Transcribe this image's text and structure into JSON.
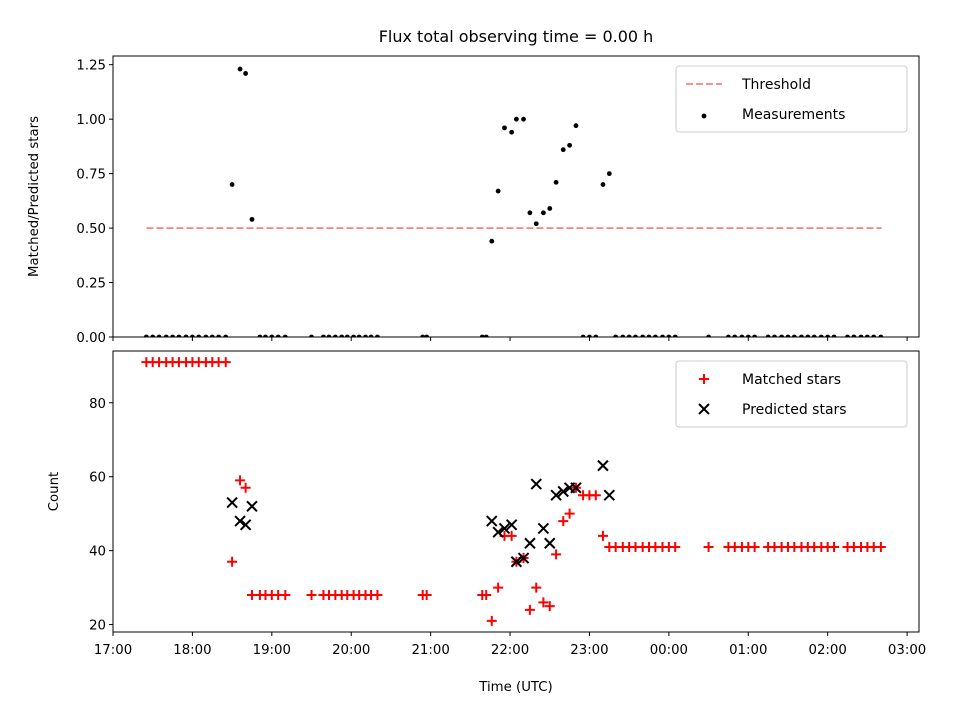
{
  "chart_data": [
    {
      "type": "scatter",
      "title": "Flux total observing time = 0.00 h",
      "xlabel": "",
      "ylabel": "Matched/Predicted stars",
      "xlim": [
        17.0,
        27.15
      ],
      "ylim": [
        0.0,
        1.29
      ],
      "yticks": [
        0.0,
        0.25,
        0.5,
        0.75,
        1.0,
        1.25
      ],
      "ytick_labels": [
        "0.00",
        "0.25",
        "0.50",
        "0.75",
        "1.00",
        "1.25"
      ],
      "legend": {
        "placement": "top-right",
        "entries": [
          "Threshold",
          "Measurements"
        ]
      },
      "series": [
        {
          "name": "Threshold",
          "style": "dashed-line",
          "color": "#ff7f7f",
          "x": [
            17.42,
            26.68
          ],
          "y": [
            0.5,
            0.5
          ]
        },
        {
          "name": "Measurements",
          "style": "dots",
          "color": "#000000",
          "x": [
            17.42,
            17.5,
            17.58,
            17.67,
            17.75,
            17.83,
            17.92,
            18.0,
            18.08,
            18.17,
            18.25,
            18.33,
            18.42,
            18.5,
            18.6,
            18.67,
            18.75,
            18.85,
            18.92,
            19.0,
            19.08,
            19.17,
            19.5,
            19.65,
            19.72,
            19.8,
            19.88,
            19.95,
            20.03,
            20.1,
            20.18,
            20.25,
            20.33,
            20.9,
            20.95,
            21.65,
            21.7,
            21.77,
            21.85,
            21.93,
            22.02,
            22.08,
            22.17,
            22.25,
            22.33,
            22.42,
            22.5,
            22.58,
            22.67,
            22.75,
            22.83,
            22.92,
            23.0,
            23.08,
            23.17,
            23.25,
            23.33,
            23.42,
            23.5,
            23.58,
            23.67,
            23.75,
            23.83,
            23.92,
            24.0,
            24.08,
            24.5,
            24.75,
            24.83,
            24.92,
            25.0,
            25.08,
            25.25,
            25.33,
            25.42,
            25.5,
            25.58,
            25.67,
            25.75,
            25.83,
            25.92,
            26.0,
            26.08,
            26.25,
            26.33,
            26.42,
            26.5,
            26.58,
            26.67
          ],
          "y": [
            0,
            0,
            0,
            0,
            0,
            0,
            0,
            0,
            0,
            0,
            0,
            0,
            0,
            0.7,
            1.23,
            1.21,
            0.54,
            0,
            0,
            0,
            0,
            0,
            0,
            0,
            0,
            0,
            0,
            0,
            0,
            0,
            0,
            0,
            0,
            0,
            0,
            0,
            0,
            0.44,
            0.67,
            0.96,
            0.94,
            1.0,
            1.0,
            0.57,
            0.52,
            0.57,
            0.59,
            0.71,
            0.86,
            0.88,
            0.97,
            0,
            0,
            0,
            0.7,
            0.75,
            0,
            0,
            0,
            0,
            0,
            0,
            0,
            0,
            0,
            0,
            0,
            0,
            0,
            0,
            0,
            0,
            0,
            0,
            0,
            0,
            0,
            0,
            0,
            0,
            0,
            0,
            0,
            0,
            0,
            0,
            0,
            0,
            0
          ]
        }
      ]
    },
    {
      "type": "scatter",
      "title": "",
      "xlabel": "Time (UTC)",
      "ylabel": "Count",
      "xlim": [
        17.0,
        27.15
      ],
      "ylim": [
        18.0,
        94.0
      ],
      "yticks": [
        20,
        40,
        60,
        80
      ],
      "ytick_labels": [
        "20",
        "40",
        "60",
        "80"
      ],
      "xticks": [
        17,
        18,
        19,
        20,
        21,
        22,
        23,
        24,
        25,
        26,
        27
      ],
      "xtick_labels": [
        "17:00",
        "18:00",
        "19:00",
        "20:00",
        "21:00",
        "22:00",
        "23:00",
        "00:00",
        "01:00",
        "02:00",
        "03:00"
      ],
      "legend": {
        "placement": "top-right",
        "entries": [
          "Matched stars",
          "Predicted stars"
        ]
      },
      "series": [
        {
          "name": "Matched stars",
          "style": "plus",
          "color": "#ff0000",
          "x": [
            17.42,
            17.5,
            17.58,
            17.67,
            17.75,
            17.83,
            17.92,
            18.0,
            18.08,
            18.17,
            18.25,
            18.33,
            18.42,
            18.5,
            18.6,
            18.67,
            18.75,
            18.85,
            18.92,
            19.0,
            19.08,
            19.17,
            19.5,
            19.65,
            19.72,
            19.8,
            19.88,
            19.95,
            20.03,
            20.1,
            20.18,
            20.25,
            20.33,
            20.9,
            20.95,
            21.65,
            21.7,
            21.77,
            21.85,
            21.93,
            22.02,
            22.08,
            22.17,
            22.25,
            22.33,
            22.42,
            22.5,
            22.58,
            22.67,
            22.75,
            22.83,
            22.92,
            23.0,
            23.08,
            23.17,
            23.25,
            23.33,
            23.42,
            23.5,
            23.58,
            23.67,
            23.75,
            23.83,
            23.92,
            24.0,
            24.08,
            24.5,
            24.75,
            24.83,
            24.92,
            25.0,
            25.08,
            25.25,
            25.33,
            25.42,
            25.5,
            25.58,
            25.67,
            25.75,
            25.83,
            25.92,
            26.0,
            26.08,
            26.25,
            26.33,
            26.42,
            26.5,
            26.58,
            26.67
          ],
          "y": [
            91,
            91,
            91,
            91,
            91,
            91,
            91,
            91,
            91,
            91,
            91,
            91,
            91,
            37,
            59,
            57,
            28,
            28,
            28,
            28,
            28,
            28,
            28,
            28,
            28,
            28,
            28,
            28,
            28,
            28,
            28,
            28,
            28,
            28,
            28,
            28,
            28,
            21,
            30,
            44,
            44,
            37,
            38,
            24,
            30,
            26,
            25,
            39,
            48,
            50,
            57,
            55,
            55,
            55,
            44,
            41,
            41,
            41,
            41,
            41,
            41,
            41,
            41,
            41,
            41,
            41,
            41,
            41,
            41,
            41,
            41,
            41,
            41,
            41,
            41,
            41,
            41,
            41,
            41,
            41,
            41,
            41,
            41,
            41,
            41,
            41,
            41,
            41,
            41
          ]
        },
        {
          "name": "Predicted stars",
          "style": "x",
          "color": "#000000",
          "x": [
            18.5,
            18.6,
            18.67,
            18.75,
            21.77,
            21.85,
            21.93,
            22.02,
            22.08,
            22.17,
            22.25,
            22.33,
            22.42,
            22.5,
            22.58,
            22.67,
            22.75,
            22.83,
            23.17,
            23.25
          ],
          "y": [
            53,
            48,
            47,
            52,
            48,
            45,
            46,
            47,
            37,
            38,
            42,
            58,
            46,
            42,
            55,
            56,
            57,
            57,
            63,
            55
          ]
        }
      ]
    }
  ]
}
